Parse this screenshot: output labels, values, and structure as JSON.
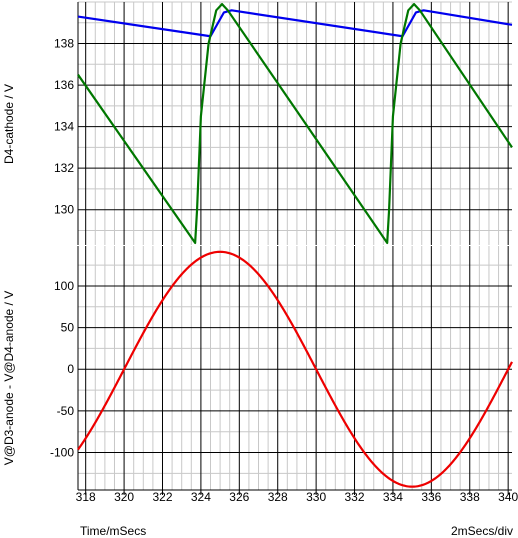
{
  "chart_data": [
    {
      "type": "line",
      "ylabel": "D4-cathode / V",
      "xlim": [
        317.6,
        340.2
      ],
      "ylim": [
        128.3,
        140.0
      ],
      "x_ticks": [
        318,
        320,
        322,
        324,
        326,
        328,
        330,
        332,
        334,
        336,
        338,
        340
      ],
      "y_ticks": [
        130,
        132,
        134,
        136,
        138
      ],
      "grid": true,
      "series": [
        {
          "color": "#0000ee",
          "x": [
            317.6,
            324.5,
            325.2,
            325.6,
            334.5,
            335.2,
            335.6,
            340.2
          ],
          "y": [
            139.3,
            138.35,
            139.5,
            139.6,
            138.35,
            139.5,
            139.6,
            138.9
          ]
        },
        {
          "color": "#007700",
          "x": [
            317.6,
            323.7,
            323.8,
            324.0,
            324.4,
            324.8,
            325.1,
            325.4,
            330.0,
            333.7,
            333.8,
            334.0,
            334.4,
            334.8,
            335.1,
            335.4,
            340.2
          ],
          "y": [
            136.5,
            128.4,
            130.0,
            134.5,
            138.0,
            139.6,
            139.9,
            139.6,
            133.4,
            128.4,
            130.0,
            134.5,
            138.0,
            139.6,
            139.9,
            139.6,
            133.0
          ]
        }
      ]
    },
    {
      "type": "line",
      "ylabel": "V@D3-anode - V@D4-anode / V",
      "xlabel": "Time/mSecs",
      "xlim": [
        317.6,
        340.2
      ],
      "ylim": [
        -145,
        148
      ],
      "x_ticks": [
        318,
        320,
        322,
        324,
        326,
        328,
        330,
        332,
        334,
        336,
        338,
        340
      ],
      "y_ticks": [
        -100,
        -50,
        0,
        50,
        100
      ],
      "grid": true,
      "series": [
        {
          "color": "#ee0000",
          "waveform": "sine",
          "amplitude": 141,
          "zero_crossing": 320,
          "period": 20,
          "x_start": 317.6,
          "x_end": 340.2
        }
      ]
    }
  ],
  "footer": {
    "time_label": "Time/mSecs",
    "div_label": "2mSecs/div"
  }
}
